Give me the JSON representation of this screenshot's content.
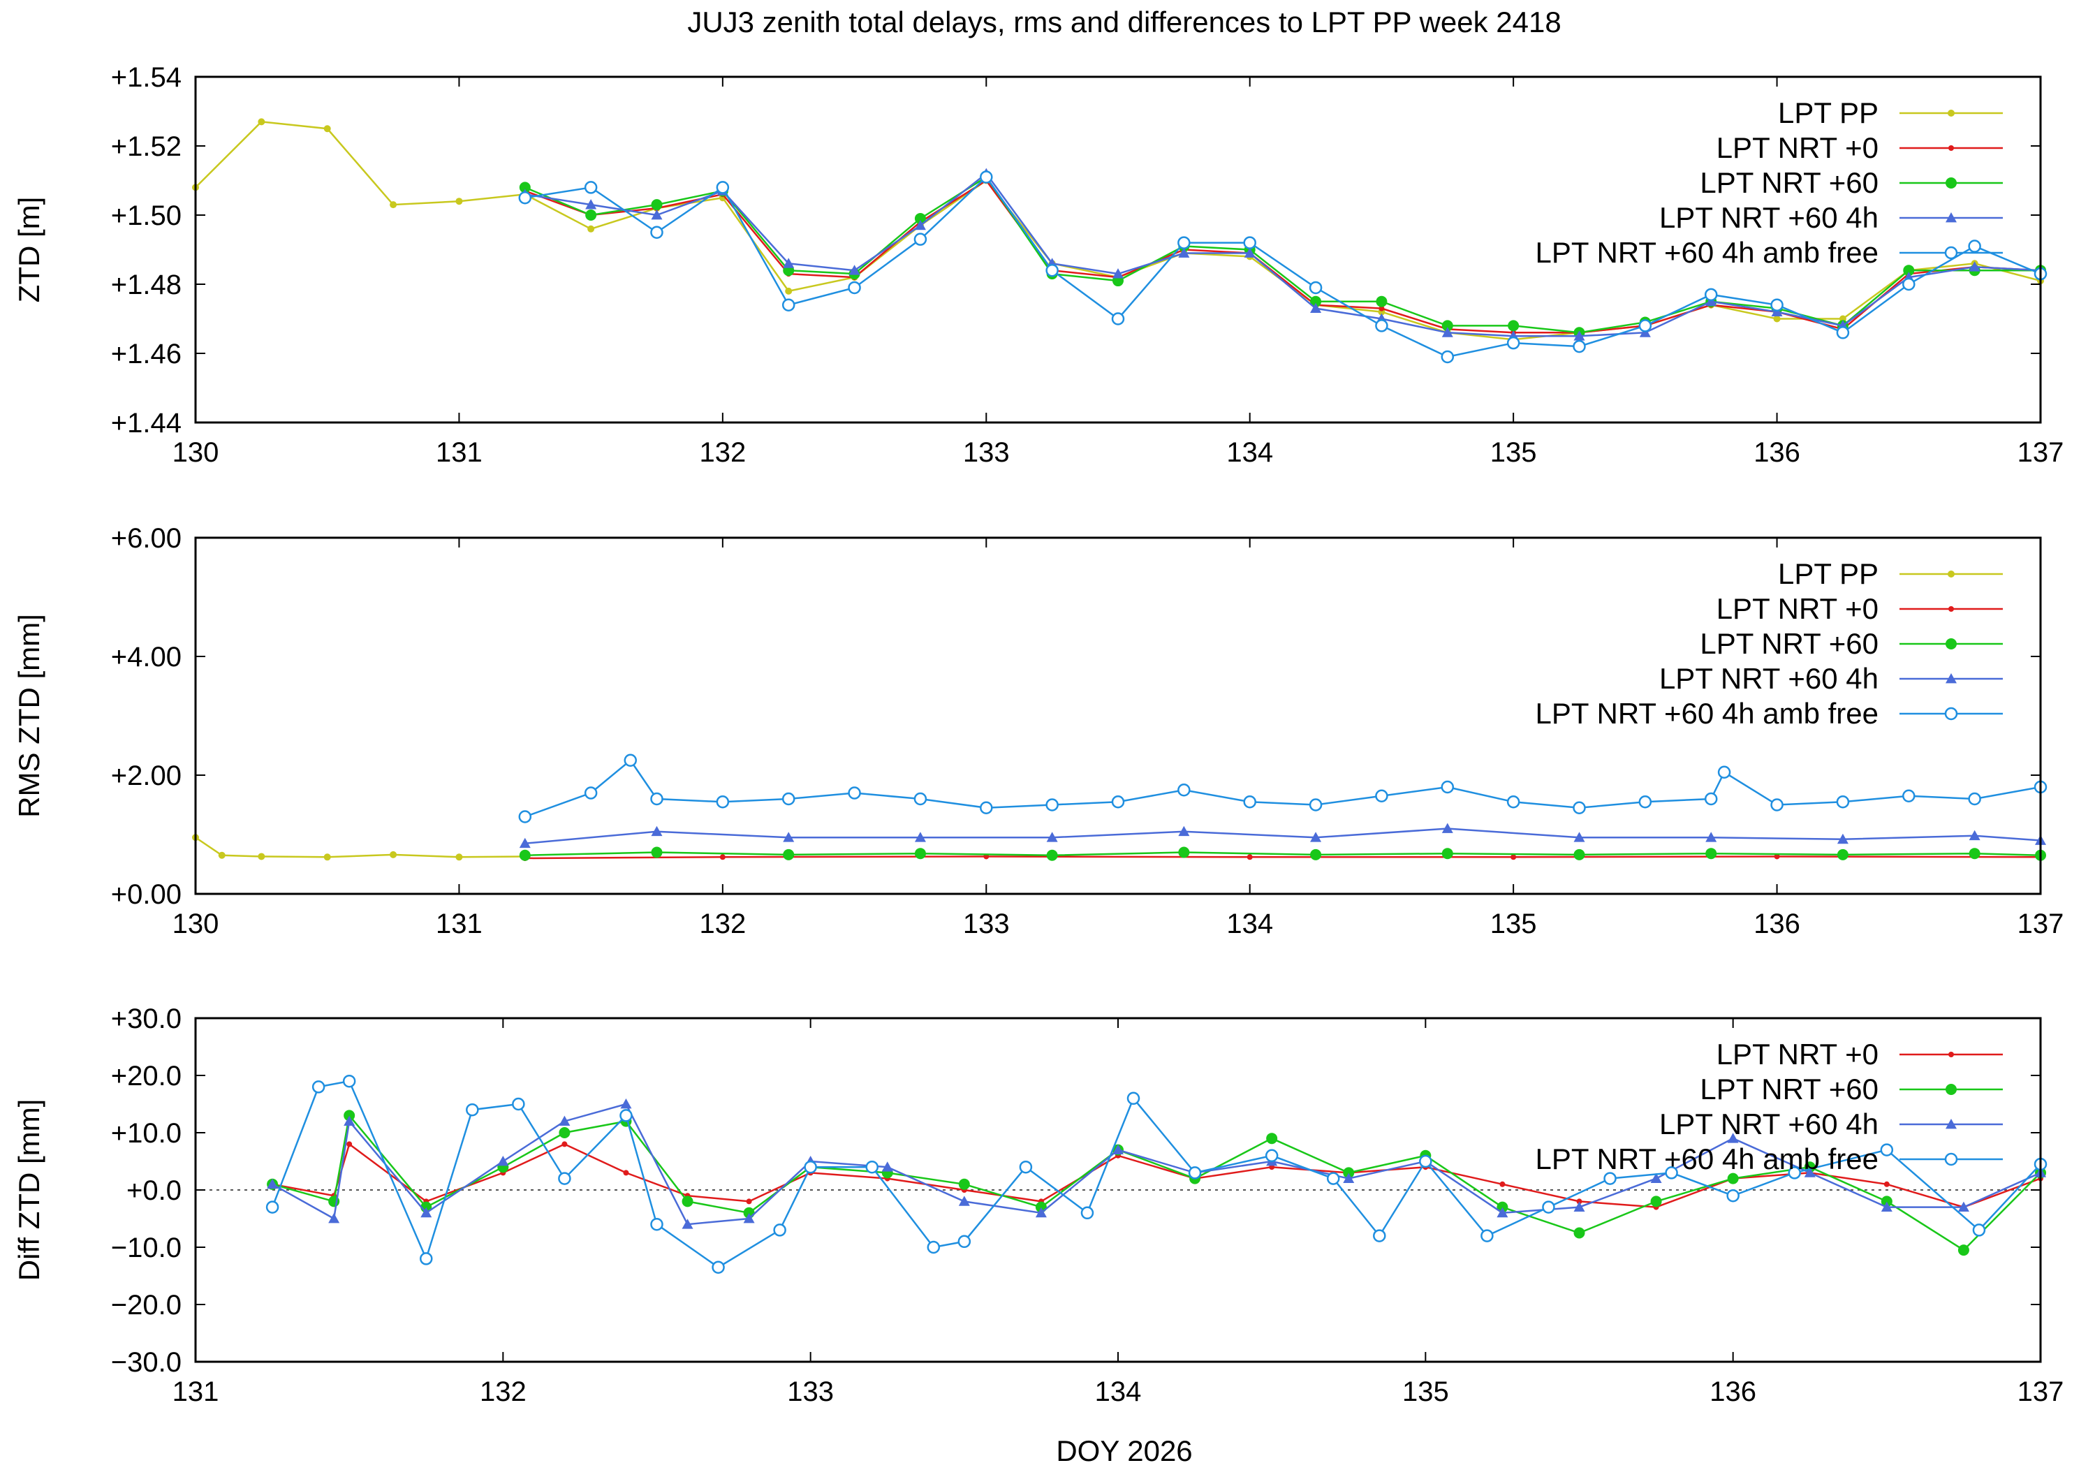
{
  "title": "JUJ3 zenith total delays, rms and differences to LPT PP week 2418",
  "xlabel": "DOY 2026",
  "colors": {
    "pp": "#c8c81e",
    "nrt0": "#e01b1b",
    "nrt60": "#19c719",
    "nrt60_4h": "#4a6bd8",
    "amb_free": "#1f8fe0"
  },
  "chart_data": [
    {
      "type": "line",
      "ylabel": "ZTD [m]",
      "xlim": [
        130,
        137
      ],
      "ylim": [
        1.44,
        1.54
      ],
      "xticks": [
        "130",
        "131",
        "132",
        "133",
        "134",
        "135",
        "136",
        "137"
      ],
      "yticks": [
        "+1.44",
        "+1.46",
        "+1.48",
        "+1.50",
        "+1.52",
        "+1.54"
      ],
      "series": [
        {
          "name": "LPT PP",
          "x": [
            130.0,
            130.25,
            130.5,
            130.75,
            131.0,
            131.25,
            131.5,
            131.75,
            132.0,
            132.25,
            132.5,
            132.75,
            133.0,
            133.25,
            133.5,
            133.75,
            134.0,
            134.25,
            134.5,
            134.75,
            135.0,
            135.25,
            135.5,
            135.75,
            136.0,
            136.25,
            136.5,
            136.75,
            137.0
          ],
          "y": [
            1.508,
            1.527,
            1.525,
            1.503,
            1.504,
            1.506,
            1.496,
            1.502,
            1.505,
            1.478,
            1.482,
            1.497,
            1.51,
            1.486,
            1.482,
            1.489,
            1.488,
            1.474,
            1.472,
            1.466,
            1.464,
            1.466,
            1.468,
            1.474,
            1.47,
            1.47,
            1.484,
            1.486,
            1.481
          ]
        },
        {
          "name": "LPT NRT +0",
          "x": [
            131.25,
            131.5,
            131.75,
            132.0,
            132.25,
            132.5,
            132.75,
            133.0,
            133.25,
            133.5,
            133.75,
            134.0,
            134.25,
            134.5,
            134.75,
            135.0,
            135.25,
            135.5,
            135.75,
            136.0,
            136.25,
            136.5,
            136.75,
            137.0
          ],
          "y": [
            1.507,
            1.5,
            1.502,
            1.506,
            1.483,
            1.482,
            1.498,
            1.51,
            1.484,
            1.482,
            1.49,
            1.489,
            1.474,
            1.473,
            1.467,
            1.466,
            1.466,
            1.468,
            1.474,
            1.472,
            1.467,
            1.483,
            1.485,
            1.484
          ]
        },
        {
          "name": "LPT NRT +60",
          "x": [
            131.25,
            131.5,
            131.75,
            132.0,
            132.25,
            132.5,
            132.75,
            133.0,
            133.25,
            133.5,
            133.75,
            134.0,
            134.25,
            134.5,
            134.75,
            135.0,
            135.25,
            135.5,
            135.75,
            136.0,
            136.25,
            136.5,
            136.75,
            137.0
          ],
          "y": [
            1.508,
            1.5,
            1.503,
            1.507,
            1.484,
            1.483,
            1.499,
            1.511,
            1.483,
            1.481,
            1.491,
            1.49,
            1.475,
            1.475,
            1.468,
            1.468,
            1.466,
            1.469,
            1.475,
            1.473,
            1.468,
            1.484,
            1.484,
            1.484
          ]
        },
        {
          "name": "LPT NRT +60 4h",
          "x": [
            131.25,
            131.5,
            131.75,
            132.0,
            132.25,
            132.5,
            132.75,
            133.0,
            133.25,
            133.5,
            133.75,
            134.0,
            134.25,
            134.5,
            134.75,
            135.0,
            135.25,
            135.5,
            135.75,
            136.0,
            136.25,
            136.5,
            136.75,
            137.0
          ],
          "y": [
            1.506,
            1.503,
            1.5,
            1.507,
            1.486,
            1.484,
            1.497,
            1.512,
            1.486,
            1.483,
            1.489,
            1.489,
            1.473,
            1.47,
            1.466,
            1.465,
            1.465,
            1.466,
            1.475,
            1.472,
            1.468,
            1.482,
            1.485,
            1.484
          ]
        },
        {
          "name": "LPT NRT +60 4h amb free",
          "x": [
            131.25,
            131.5,
            131.75,
            132.0,
            132.25,
            132.5,
            132.75,
            133.0,
            133.25,
            133.5,
            133.75,
            134.0,
            134.25,
            134.5,
            134.75,
            135.0,
            135.25,
            135.5,
            135.75,
            136.0,
            136.25,
            136.5,
            136.75,
            137.0
          ],
          "y": [
            1.505,
            1.508,
            1.495,
            1.508,
            1.474,
            1.479,
            1.493,
            1.511,
            1.484,
            1.47,
            1.492,
            1.492,
            1.479,
            1.468,
            1.459,
            1.463,
            1.462,
            1.468,
            1.477,
            1.474,
            1.466,
            1.48,
            1.491,
            1.483
          ]
        }
      ]
    },
    {
      "type": "line",
      "ylabel": "RMS ZTD [mm]",
      "xlim": [
        130,
        137
      ],
      "ylim": [
        0,
        6
      ],
      "xticks": [
        "130",
        "131",
        "132",
        "133",
        "134",
        "135",
        "136",
        "137"
      ],
      "yticks": [
        "+0.00",
        "+2.00",
        "+4.00",
        "+6.00"
      ],
      "series": [
        {
          "name": "LPT PP",
          "x": [
            130.0,
            130.1,
            130.25,
            130.5,
            130.75,
            131.0,
            131.25
          ],
          "y": [
            0.95,
            0.65,
            0.63,
            0.62,
            0.66,
            0.62,
            0.63
          ]
        },
        {
          "name": "LPT NRT +0",
          "x": [
            131.25,
            132.0,
            133.0,
            134.0,
            135.0,
            136.0,
            137.0
          ],
          "y": [
            0.6,
            0.62,
            0.63,
            0.62,
            0.62,
            0.63,
            0.62
          ]
        },
        {
          "name": "LPT NRT +60",
          "x": [
            131.25,
            131.75,
            132.25,
            132.75,
            133.25,
            133.75,
            134.25,
            134.75,
            135.25,
            135.75,
            136.25,
            136.75,
            137.0
          ],
          "y": [
            0.65,
            0.7,
            0.66,
            0.68,
            0.65,
            0.7,
            0.66,
            0.68,
            0.66,
            0.68,
            0.66,
            0.68,
            0.65
          ]
        },
        {
          "name": "LPT NRT +60 4h",
          "x": [
            131.25,
            131.75,
            132.25,
            132.75,
            133.25,
            133.75,
            134.25,
            134.75,
            135.25,
            135.75,
            136.25,
            136.75,
            137.0
          ],
          "y": [
            0.85,
            1.05,
            0.95,
            0.95,
            0.95,
            1.05,
            0.95,
            1.1,
            0.95,
            0.95,
            0.92,
            0.98,
            0.9
          ]
        },
        {
          "name": "LPT NRT +60 4h amb free",
          "x": [
            131.25,
            131.5,
            131.65,
            131.75,
            132.0,
            132.25,
            132.5,
            132.75,
            133.0,
            133.25,
            133.5,
            133.75,
            134.0,
            134.25,
            134.5,
            134.75,
            135.0,
            135.25,
            135.5,
            135.75,
            135.8,
            136.0,
            136.25,
            136.5,
            136.75,
            137.0
          ],
          "y": [
            1.3,
            1.7,
            2.25,
            1.6,
            1.55,
            1.6,
            1.7,
            1.6,
            1.45,
            1.5,
            1.55,
            1.75,
            1.55,
            1.5,
            1.65,
            1.8,
            1.55,
            1.45,
            1.55,
            1.6,
            2.05,
            1.5,
            1.55,
            1.65,
            1.6,
            1.8
          ]
        }
      ]
    },
    {
      "type": "line",
      "ylabel": "Diff ZTD [mm]",
      "xlim": [
        131,
        137
      ],
      "ylim": [
        -30,
        30
      ],
      "xticks": [
        "131",
        "132",
        "133",
        "134",
        "135",
        "136",
        "137"
      ],
      "yticks": [
        "−30.0",
        "−20.0",
        "−10.0",
        "+0.0",
        "+10.0",
        "+20.0",
        "+30.0"
      ],
      "series": [
        {
          "name": "LPT NRT +0",
          "x": [
            131.25,
            131.45,
            131.5,
            131.75,
            132.0,
            132.2,
            132.4,
            132.6,
            132.8,
            133.0,
            133.25,
            133.5,
            133.75,
            134.0,
            134.25,
            134.5,
            134.75,
            135.0,
            135.25,
            135.5,
            135.75,
            136.0,
            136.25,
            136.5,
            136.75,
            137.0
          ],
          "y": [
            1.0,
            -1.0,
            8.0,
            -2.0,
            3.0,
            8.0,
            3.0,
            -1.0,
            -2.0,
            3.0,
            2.0,
            0.0,
            -2.0,
            6.0,
            2.0,
            4.0,
            3.0,
            4.0,
            1.0,
            -2.0,
            -3.0,
            2.0,
            3.0,
            1.0,
            -3.0,
            2.0
          ]
        },
        {
          "name": "LPT NRT +60",
          "x": [
            131.25,
            131.45,
            131.5,
            131.75,
            132.0,
            132.2,
            132.4,
            132.6,
            132.8,
            133.0,
            133.25,
            133.5,
            133.75,
            134.0,
            134.25,
            134.5,
            134.75,
            135.0,
            135.25,
            135.5,
            135.75,
            136.0,
            136.25,
            136.5,
            136.75,
            137.0
          ],
          "y": [
            1.0,
            -2.0,
            13.0,
            -3.0,
            4.0,
            10.0,
            12.0,
            -2.0,
            -4.0,
            4.0,
            3.0,
            1.0,
            -3.0,
            7.0,
            2.0,
            9.0,
            3.0,
            6.0,
            -3.0,
            -7.5,
            -2.0,
            2.0,
            4.0,
            -2.0,
            -10.5,
            3.0
          ]
        },
        {
          "name": "LPT NRT +60 4h",
          "x": [
            131.25,
            131.45,
            131.5,
            131.75,
            132.0,
            132.2,
            132.4,
            132.6,
            132.8,
            133.0,
            133.25,
            133.5,
            133.75,
            134.0,
            134.25,
            134.5,
            134.75,
            135.0,
            135.25,
            135.5,
            135.75,
            136.0,
            136.25,
            136.5,
            136.75,
            137.0
          ],
          "y": [
            1.0,
            -5.0,
            12.0,
            -4.0,
            5.0,
            12.0,
            15.0,
            -6.0,
            -5.0,
            5.0,
            4.0,
            -2.0,
            -4.0,
            7.0,
            3.0,
            5.0,
            2.0,
            5.0,
            -4.0,
            -3.0,
            2.0,
            9.0,
            3.0,
            -3.0,
            -3.0,
            3.0
          ]
        },
        {
          "name": "LPT NRT +60 4h amb free",
          "x": [
            131.25,
            131.4,
            131.5,
            131.75,
            131.9,
            132.05,
            132.2,
            132.4,
            132.5,
            132.7,
            132.9,
            133.0,
            133.2,
            133.4,
            133.5,
            133.7,
            133.9,
            134.05,
            134.25,
            134.5,
            134.7,
            134.85,
            135.0,
            135.2,
            135.4,
            135.6,
            135.8,
            136.0,
            136.2,
            136.5,
            136.8,
            137.0
          ],
          "y": [
            -3.0,
            18.0,
            19.0,
            -12.0,
            14.0,
            15.0,
            2.0,
            13.0,
            -6.0,
            -13.5,
            -7.0,
            4.0,
            4.0,
            -10.0,
            -9.0,
            4.0,
            -4.0,
            16.0,
            3.0,
            6.0,
            2.0,
            -8.0,
            5.0,
            -8.0,
            -3.0,
            2.0,
            3.0,
            -1.0,
            3.0,
            7.0,
            -7.0,
            4.5
          ]
        }
      ]
    }
  ]
}
